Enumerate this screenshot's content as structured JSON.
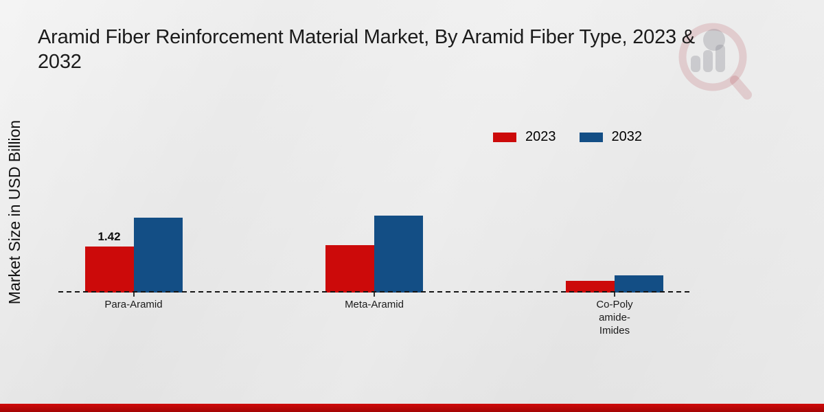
{
  "title": {
    "lines": [
      "Aramid Fiber Reinforcement Material Market, By Aramid Fiber Type, 2023 &",
      "2032"
    ],
    "full": "Aramid Fiber Reinforcement Material Market, By Aramid Fiber Type, 2023 & 2032"
  },
  "y_axis_label": "Market Size in USD Billion",
  "colors": {
    "series_2023": "#cc0a0a",
    "series_2032": "#134e85",
    "baseline": "#151515",
    "footer_band": "#c20808",
    "background": "#e8e8e8"
  },
  "logo": {
    "name": "market-research-watermark",
    "shape": "magnifier-with-bars"
  },
  "chart_data": {
    "type": "bar",
    "title": "Aramid Fiber Reinforcement Material Market, By Aramid Fiber Type, 2023 & 2032",
    "xlabel": "",
    "ylabel": "Market Size in USD Billion",
    "categories": [
      "Para-Aramid",
      "Meta-Aramid",
      "Co-Poly\namide-\nImides"
    ],
    "series": [
      {
        "name": "2023",
        "color": "#cc0a0a",
        "values": [
          1.42,
          1.46,
          0.36
        ]
      },
      {
        "name": "2032",
        "color": "#134e85",
        "values": [
          2.31,
          2.37,
          0.53
        ]
      }
    ],
    "data_labels": [
      {
        "series": "2023",
        "category": "Para-Aramid",
        "text": "1.42"
      }
    ],
    "ylim": [
      0,
      2.5
    ],
    "grid": false,
    "axis_line_style": "dashed",
    "legend_position": "top-right"
  }
}
